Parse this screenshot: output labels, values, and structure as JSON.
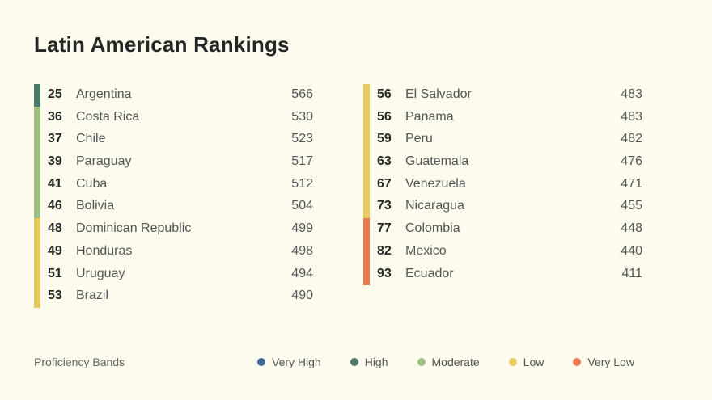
{
  "title": "Latin American Rankings",
  "colors": {
    "very_high": "#3d6894",
    "high": "#4a7a6a",
    "moderate": "#9ebf84",
    "low": "#e8cb5c",
    "very_low": "#ec7a4f"
  },
  "left_rows": [
    {
      "rank": "25",
      "country": "Argentina",
      "score": "566",
      "band": "high"
    },
    {
      "rank": "36",
      "country": "Costa Rica",
      "score": "530",
      "band": "moderate"
    },
    {
      "rank": "37",
      "country": "Chile",
      "score": "523",
      "band": "moderate"
    },
    {
      "rank": "39",
      "country": "Paraguay",
      "score": "517",
      "band": "moderate"
    },
    {
      "rank": "41",
      "country": "Cuba",
      "score": "512",
      "band": "moderate"
    },
    {
      "rank": "46",
      "country": "Bolivia",
      "score": "504",
      "band": "moderate"
    },
    {
      "rank": "48",
      "country": "Dominican Republic",
      "score": "499",
      "band": "low"
    },
    {
      "rank": "49",
      "country": "Honduras",
      "score": "498",
      "band": "low"
    },
    {
      "rank": "51",
      "country": "Uruguay",
      "score": "494",
      "band": "low"
    },
    {
      "rank": "53",
      "country": "Brazil",
      "score": "490",
      "band": "low"
    }
  ],
  "right_rows": [
    {
      "rank": "56",
      "country": "El Salvador",
      "score": "483",
      "band": "low"
    },
    {
      "rank": "56",
      "country": "Panama",
      "score": "483",
      "band": "low"
    },
    {
      "rank": "59",
      "country": "Peru",
      "score": "482",
      "band": "low"
    },
    {
      "rank": "63",
      "country": "Guatemala",
      "score": "476",
      "band": "low"
    },
    {
      "rank": "67",
      "country": "Venezuela",
      "score": "471",
      "band": "low"
    },
    {
      "rank": "73",
      "country": "Nicaragua",
      "score": "455",
      "band": "low"
    },
    {
      "rank": "77",
      "country": "Colombia",
      "score": "448",
      "band": "very_low"
    },
    {
      "rank": "82",
      "country": "Mexico",
      "score": "440",
      "band": "very_low"
    },
    {
      "rank": "93",
      "country": "Ecuador",
      "score": "411",
      "band": "very_low"
    }
  ],
  "legend": {
    "label": "Proficiency Bands",
    "items": [
      {
        "label": "Very High",
        "band": "very_high"
      },
      {
        "label": "High",
        "band": "high"
      },
      {
        "label": "Moderate",
        "band": "moderate"
      },
      {
        "label": "Low",
        "band": "low"
      },
      {
        "label": "Very Low",
        "band": "very_low"
      }
    ]
  }
}
